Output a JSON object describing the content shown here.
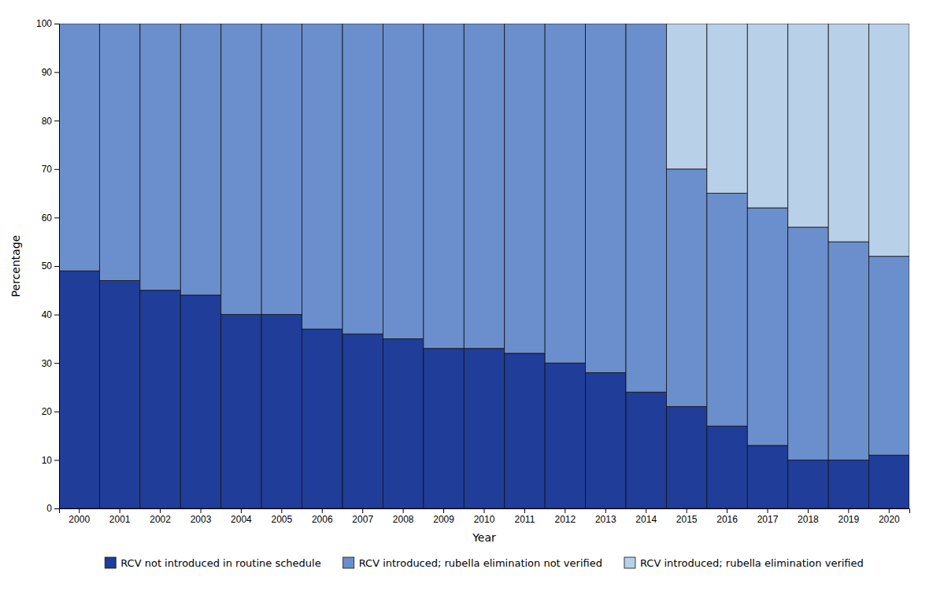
{
  "chart_data": {
    "type": "bar",
    "stacked": true,
    "xlabel": "Year",
    "ylabel": "Percentage",
    "categories": [
      "2000",
      "2001",
      "2002",
      "2003",
      "2004",
      "2005",
      "2006",
      "2007",
      "2008",
      "2009",
      "2010",
      "2011",
      "2012",
      "2013",
      "2014",
      "2015",
      "2016",
      "2017",
      "2018",
      "2019",
      "2020"
    ],
    "series": [
      {
        "name": "RCV not introduced in routine schedule",
        "color": "#1f3d99",
        "values": [
          49,
          47,
          45,
          44,
          40,
          40,
          37,
          36,
          35,
          33,
          33,
          32,
          30,
          28,
          24,
          21,
          17,
          13,
          10,
          10,
          11
        ]
      },
      {
        "name": "RCV introduced; rubella elimination not verified",
        "color": "#6b8fcc",
        "values": [
          51,
          53,
          55,
          56,
          60,
          60,
          63,
          64,
          65,
          67,
          67,
          68,
          70,
          72,
          76,
          49,
          48,
          49,
          48,
          45,
          41
        ]
      },
      {
        "name": "RCV introduced; rubella elimination verified",
        "color": "#b8d0e8",
        "values": [
          0,
          0,
          0,
          0,
          0,
          0,
          0,
          0,
          0,
          0,
          0,
          0,
          0,
          0,
          0,
          30,
          35,
          38,
          42,
          45,
          48
        ]
      }
    ],
    "ylim": [
      0,
      100
    ],
    "yticks": [
      0,
      10,
      20,
      30,
      40,
      50,
      60,
      70,
      80,
      90,
      100
    ],
    "grid": false,
    "legend": "bottom"
  }
}
